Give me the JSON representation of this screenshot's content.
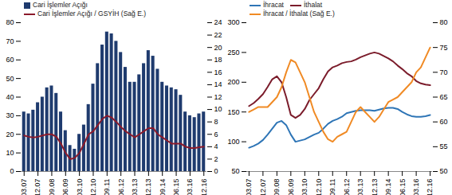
{
  "chart_data": [
    {
      "type": "bar",
      "categories": [
        "03.07",
        null,
        null,
        "12.07",
        null,
        null,
        "09.08",
        null,
        null,
        "06.09",
        null,
        null,
        "03.10",
        null,
        null,
        "12.10",
        null,
        null,
        "09.11",
        null,
        null,
        "06.12",
        null,
        null,
        "03.13",
        null,
        null,
        "12.13",
        null,
        null,
        "09.14",
        null,
        null,
        "06.15",
        null,
        null,
        "03.16",
        null,
        null,
        "12.16"
      ],
      "series": [
        {
          "name": "Cari İşlemler Açığı",
          "type": "bar",
          "color": "#1f3b6e",
          "values": [
            32,
            31,
            33,
            37,
            40,
            45,
            46,
            42,
            32,
            22,
            14,
            12,
            20,
            25,
            36,
            47,
            58,
            68,
            75,
            74,
            70,
            64,
            56,
            48,
            48,
            52,
            58,
            65,
            62,
            55,
            48,
            46,
            45,
            44,
            41,
            32,
            30,
            29,
            31,
            32
          ]
        },
        {
          "name": "Cari İşlemler Açığı / GSYİH (Sağ E.)",
          "type": "line",
          "axis": "y2",
          "color": "#8b1a2b",
          "values": [
            5.8,
            5.6,
            5.5,
            5.6,
            5.8,
            6.0,
            6.0,
            5.6,
            4.5,
            3.0,
            2.0,
            2.2,
            3.0,
            4.5,
            6.0,
            6.5,
            7.5,
            8.5,
            9.0,
            8.7,
            8.0,
            7.2,
            6.5,
            6.0,
            5.5,
            6.0,
            6.5,
            7.0,
            7.0,
            6.0,
            5.5,
            5.0,
            4.5,
            4.5,
            4.5,
            4.0,
            3.8,
            3.8,
            3.9,
            4.0
          ]
        }
      ],
      "ylim": [
        0,
        80
      ],
      "yticks": [
        0,
        10,
        20,
        30,
        40,
        50,
        60,
        70,
        80
      ],
      "y2lim": [
        0,
        24
      ],
      "y2ticks": [
        0,
        2,
        4,
        6,
        8,
        10,
        12,
        14,
        16,
        18,
        20,
        22,
        24
      ],
      "grid": false,
      "legend": "top-left"
    },
    {
      "type": "line",
      "categories": [
        "03.07",
        null,
        null,
        "12.07",
        null,
        null,
        "09.08",
        null,
        null,
        "06.09",
        null,
        null,
        "03.10",
        null,
        null,
        "12.10",
        null,
        null,
        "09.11",
        null,
        null,
        "06.12",
        null,
        null,
        "03.13",
        null,
        null,
        "12.13",
        null,
        null,
        "09.14",
        null,
        null,
        "06.15",
        null,
        null,
        "03.16",
        null,
        null,
        "12.16"
      ],
      "series": [
        {
          "name": "İhracat",
          "color": "#2e75b6",
          "values": [
            90,
            93,
            97,
            103,
            112,
            122,
            132,
            135,
            128,
            112,
            100,
            102,
            104,
            108,
            112,
            115,
            122,
            130,
            135,
            138,
            142,
            148,
            150,
            152,
            153,
            153,
            153,
            152,
            154,
            156,
            157,
            157,
            155,
            150,
            146,
            143,
            142,
            142,
            143,
            145
          ]
        },
        {
          "name": "İthalat",
          "color": "#7b1c2b",
          "values": [
            160,
            165,
            172,
            180,
            192,
            205,
            210,
            200,
            175,
            145,
            140,
            145,
            155,
            170,
            180,
            190,
            205,
            218,
            225,
            228,
            232,
            234,
            235,
            238,
            242,
            245,
            248,
            250,
            248,
            244,
            240,
            235,
            228,
            222,
            215,
            210,
            202,
            198,
            196,
            195
          ]
        },
        {
          "name": "İhracat / İthalat (Sağ E.)",
          "axis": "y2",
          "color": "#f08a24",
          "values": [
            62,
            62.5,
            63,
            63,
            63,
            64,
            65,
            67,
            70,
            72.5,
            72,
            70,
            68,
            65,
            62,
            60,
            58,
            56.5,
            56,
            57,
            57.5,
            58,
            60,
            62,
            63,
            62,
            61,
            60,
            61,
            62.5,
            64,
            64.5,
            65,
            66,
            67,
            68,
            70,
            71,
            73,
            75
          ]
        }
      ],
      "ylim": [
        50,
        300
      ],
      "yticks": [
        50,
        100,
        150,
        200,
        250,
        300
      ],
      "y2lim": [
        50,
        80
      ],
      "y2ticks": [
        50,
        55,
        60,
        65,
        70,
        75,
        80
      ],
      "grid": false,
      "legend": "top-left"
    }
  ]
}
